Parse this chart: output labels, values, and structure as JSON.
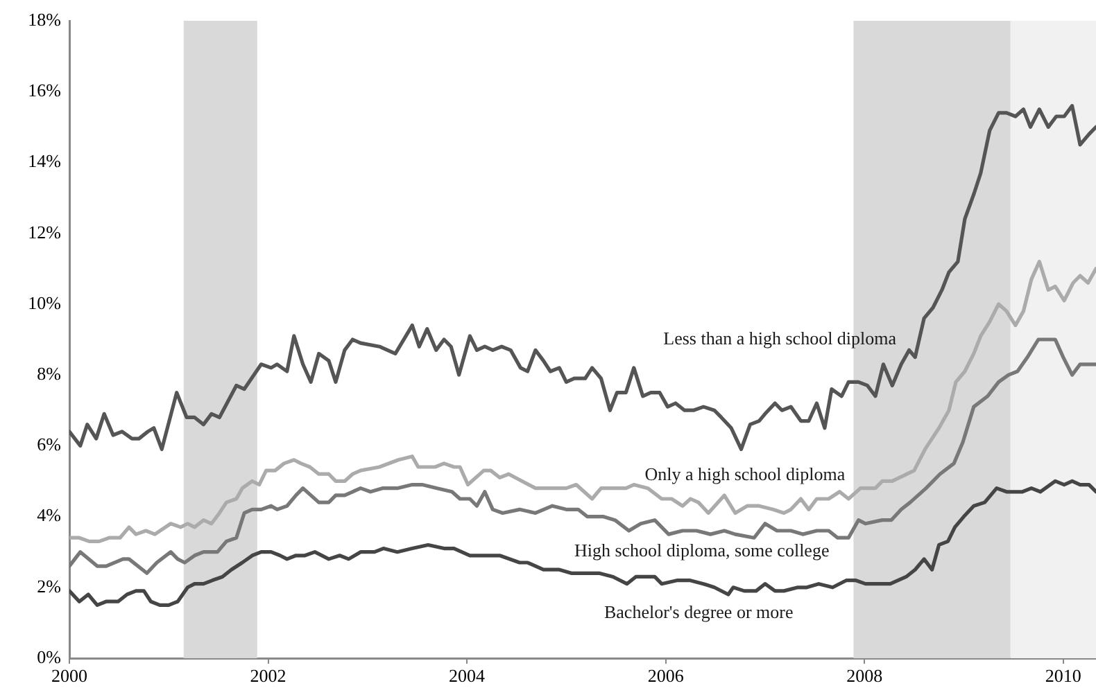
{
  "chart_data": {
    "type": "line",
    "xlim": [
      2000,
      2010.33
    ],
    "xticks": [
      2000,
      2002,
      2004,
      2006,
      2008,
      2010
    ],
    "ylim": [
      0,
      18
    ],
    "yticks": [
      {
        "value": 0,
        "label": "0%"
      },
      {
        "value": 2,
        "label": "2%"
      },
      {
        "value": 4,
        "label": "4%"
      },
      {
        "value": 6,
        "label": "6%"
      },
      {
        "value": 8,
        "label": "8%"
      },
      {
        "value": 10,
        "label": "10%"
      },
      {
        "value": 12,
        "label": "12%"
      },
      {
        "value": 14,
        "label": "14%"
      },
      {
        "value": 16,
        "label": "16%"
      },
      {
        "value": 18,
        "label": "18%"
      }
    ],
    "grid": false,
    "legend": false,
    "marker": "none",
    "line_style": "solid",
    "bands": [
      {
        "axis": "x",
        "from": 2001.15,
        "to": 2001.89,
        "label": null,
        "color": "#d9d9d9"
      },
      {
        "axis": "x",
        "from": 2007.89,
        "to": 2009.47,
        "label": null,
        "color": "#d9d9d9"
      },
      {
        "axis": "x",
        "from": 2009.47,
        "to": 2010.33,
        "label": null,
        "color": "#f1f1f1"
      }
    ],
    "series": [
      {
        "name": "Less than a high school diploma",
        "color": "#555555",
        "x": [
          2000.0,
          2000.11,
          2000.18,
          2000.27,
          2000.35,
          2000.44,
          2000.53,
          2000.63,
          2000.7,
          2000.79,
          2000.85,
          2000.93,
          2001.08,
          2001.18,
          2001.26,
          2001.35,
          2001.43,
          2001.51,
          2001.68,
          2001.76,
          2001.93,
          2002.03,
          2002.09,
          2002.19,
          2002.26,
          2002.35,
          2002.43,
          2002.51,
          2002.61,
          2002.68,
          2002.77,
          2002.85,
          2002.93,
          2003.12,
          2003.28,
          2003.45,
          2003.52,
          2003.6,
          2003.69,
          2003.77,
          2003.84,
          2003.92,
          2004.03,
          2004.1,
          2004.18,
          2004.26,
          2004.35,
          2004.44,
          2004.54,
          2004.61,
          2004.69,
          2004.77,
          2004.84,
          2004.93,
          2005.0,
          2005.08,
          2005.19,
          2005.26,
          2005.35,
          2005.44,
          2005.51,
          2005.6,
          2005.68,
          2005.77,
          2005.85,
          2005.94,
          2006.02,
          2006.1,
          2006.19,
          2006.28,
          2006.38,
          2006.49,
          2006.56,
          2006.66,
          2006.76,
          2006.85,
          2006.94,
          2007.0,
          2007.1,
          2007.17,
          2007.26,
          2007.36,
          2007.44,
          2007.52,
          2007.6,
          2007.67,
          2007.77,
          2007.84,
          2007.94,
          2008.03,
          2008.11,
          2008.19,
          2008.28,
          2008.37,
          2008.45,
          2008.51,
          2008.6,
          2008.69,
          2008.78,
          2008.85,
          2008.94,
          2009.01,
          2009.1,
          2009.17,
          2009.26,
          2009.35,
          2009.43,
          2009.52,
          2009.6,
          2009.67,
          2009.76,
          2009.85,
          2009.93,
          2010.01,
          2010.09,
          2010.17,
          2010.26,
          2010.33
        ],
        "values": [
          6.4,
          6.0,
          6.6,
          6.2,
          6.9,
          6.3,
          6.4,
          6.2,
          6.2,
          6.4,
          6.5,
          5.9,
          7.5,
          6.8,
          6.8,
          6.6,
          6.9,
          6.8,
          7.7,
          7.6,
          8.3,
          8.2,
          8.3,
          8.1,
          9.1,
          8.3,
          7.8,
          8.6,
          8.4,
          7.8,
          8.7,
          9.0,
          8.9,
          8.8,
          8.6,
          9.4,
          8.8,
          9.3,
          8.7,
          9.0,
          8.8,
          8.0,
          9.1,
          8.7,
          8.8,
          8.7,
          8.8,
          8.7,
          8.2,
          8.1,
          8.7,
          8.4,
          8.1,
          8.2,
          7.8,
          7.9,
          7.9,
          8.2,
          7.9,
          7.0,
          7.5,
          7.5,
          8.2,
          7.4,
          7.5,
          7.5,
          7.1,
          7.2,
          7.0,
          7.0,
          7.1,
          7.0,
          6.8,
          6.5,
          5.9,
          6.6,
          6.7,
          6.9,
          7.2,
          7.0,
          7.1,
          6.7,
          6.7,
          7.2,
          6.5,
          7.6,
          7.4,
          7.8,
          7.8,
          7.7,
          7.4,
          8.3,
          7.7,
          8.3,
          8.7,
          8.5,
          9.6,
          9.9,
          10.4,
          10.9,
          11.2,
          12.4,
          13.1,
          13.7,
          14.9,
          15.4,
          15.4,
          15.3,
          15.5,
          15.0,
          15.5,
          15.0,
          15.3,
          15.3,
          15.6,
          14.5,
          14.8,
          15.0
        ]
      },
      {
        "name": "Only a high school diploma",
        "color": "#ababab",
        "x": [
          2000.0,
          2000.1,
          2000.2,
          2000.3,
          2000.4,
          2000.51,
          2000.6,
          2000.67,
          2000.77,
          2000.86,
          2001.02,
          2001.12,
          2001.19,
          2001.26,
          2001.35,
          2001.43,
          2001.51,
          2001.58,
          2001.68,
          2001.74,
          2001.84,
          2001.91,
          2001.98,
          2002.07,
          2002.16,
          2002.26,
          2002.33,
          2002.42,
          2002.51,
          2002.61,
          2002.68,
          2002.77,
          2002.85,
          2002.93,
          2003.12,
          2003.31,
          2003.45,
          2003.51,
          2003.68,
          2003.77,
          2003.87,
          2003.93,
          2004.01,
          2004.17,
          2004.24,
          2004.33,
          2004.42,
          2004.69,
          2004.79,
          2004.93,
          2005.0,
          2005.1,
          2005.26,
          2005.35,
          2005.49,
          2005.6,
          2005.68,
          2005.82,
          2005.96,
          2006.06,
          2006.17,
          2006.25,
          2006.33,
          2006.43,
          2006.59,
          2006.7,
          2006.82,
          2006.94,
          2007.08,
          2007.19,
          2007.26,
          2007.36,
          2007.44,
          2007.52,
          2007.64,
          2007.75,
          2007.84,
          2007.96,
          2008.11,
          2008.18,
          2008.28,
          2008.5,
          2008.61,
          2008.75,
          2008.85,
          2008.92,
          2009.01,
          2009.1,
          2009.17,
          2009.26,
          2009.35,
          2009.43,
          2009.52,
          2009.6,
          2009.68,
          2009.76,
          2009.85,
          2009.92,
          2010.01,
          2010.1,
          2010.17,
          2010.25,
          2010.33
        ],
        "values": [
          3.4,
          3.4,
          3.3,
          3.3,
          3.4,
          3.4,
          3.7,
          3.5,
          3.6,
          3.5,
          3.8,
          3.7,
          3.8,
          3.7,
          3.9,
          3.8,
          4.1,
          4.4,
          4.5,
          4.8,
          5.0,
          4.9,
          5.3,
          5.3,
          5.5,
          5.6,
          5.5,
          5.4,
          5.2,
          5.2,
          5.0,
          5.0,
          5.2,
          5.3,
          5.4,
          5.6,
          5.7,
          5.4,
          5.4,
          5.5,
          5.4,
          5.4,
          4.9,
          5.3,
          5.3,
          5.1,
          5.2,
          4.8,
          4.8,
          4.8,
          4.8,
          4.9,
          4.5,
          4.8,
          4.8,
          4.8,
          4.9,
          4.8,
          4.5,
          4.5,
          4.3,
          4.5,
          4.4,
          4.1,
          4.6,
          4.1,
          4.3,
          4.3,
          4.2,
          4.1,
          4.2,
          4.5,
          4.2,
          4.5,
          4.5,
          4.7,
          4.5,
          4.8,
          4.8,
          5.0,
          5.0,
          5.3,
          5.9,
          6.5,
          7.0,
          7.8,
          8.1,
          8.6,
          9.1,
          9.5,
          10.0,
          9.8,
          9.4,
          9.8,
          10.7,
          11.2,
          10.4,
          10.5,
          10.1,
          10.6,
          10.8,
          10.6,
          11.0
        ]
      },
      {
        "name": "High school diploma, some college",
        "color": "#787878",
        "x": [
          2000.0,
          2000.11,
          2000.28,
          2000.37,
          2000.54,
          2000.6,
          2000.78,
          2000.88,
          2001.02,
          2001.09,
          2001.16,
          2001.26,
          2001.35,
          2001.49,
          2001.58,
          2001.68,
          2001.76,
          2001.84,
          2001.93,
          2002.03,
          2002.09,
          2002.19,
          2002.28,
          2002.35,
          2002.43,
          2002.51,
          2002.61,
          2002.68,
          2002.77,
          2002.85,
          2002.93,
          2003.03,
          2003.15,
          2003.3,
          2003.45,
          2003.55,
          2003.7,
          2003.85,
          2003.93,
          2004.03,
          2004.1,
          2004.18,
          2004.26,
          2004.36,
          2004.53,
          2004.69,
          2004.86,
          2005.0,
          2005.12,
          2005.21,
          2005.37,
          2005.49,
          2005.63,
          2005.75,
          2005.89,
          2006.03,
          2006.17,
          2006.31,
          2006.45,
          2006.59,
          2006.7,
          2006.89,
          2007.0,
          2007.12,
          2007.26,
          2007.38,
          2007.52,
          2007.64,
          2007.73,
          2007.84,
          2007.94,
          2008.01,
          2008.18,
          2008.27,
          2008.37,
          2008.46,
          2008.62,
          2008.76,
          2008.9,
          2008.99,
          2009.1,
          2009.24,
          2009.35,
          2009.45,
          2009.54,
          2009.64,
          2009.75,
          2009.92,
          2010.0,
          2010.09,
          2010.17,
          2010.29,
          2010.33
        ],
        "values": [
          2.6,
          3.0,
          2.6,
          2.6,
          2.8,
          2.8,
          2.4,
          2.7,
          3.0,
          2.8,
          2.7,
          2.9,
          3.0,
          3.0,
          3.3,
          3.4,
          4.1,
          4.2,
          4.2,
          4.3,
          4.2,
          4.3,
          4.6,
          4.8,
          4.6,
          4.4,
          4.4,
          4.6,
          4.6,
          4.7,
          4.8,
          4.7,
          4.8,
          4.8,
          4.9,
          4.9,
          4.8,
          4.7,
          4.5,
          4.5,
          4.3,
          4.7,
          4.2,
          4.1,
          4.2,
          4.1,
          4.3,
          4.2,
          4.2,
          4.0,
          4.0,
          3.9,
          3.6,
          3.8,
          3.9,
          3.5,
          3.6,
          3.6,
          3.5,
          3.6,
          3.5,
          3.4,
          3.8,
          3.6,
          3.6,
          3.5,
          3.6,
          3.6,
          3.4,
          3.4,
          3.9,
          3.8,
          3.9,
          3.9,
          4.2,
          4.4,
          4.8,
          5.2,
          5.5,
          6.1,
          7.1,
          7.4,
          7.8,
          8.0,
          8.1,
          8.5,
          9.0,
          9.0,
          8.5,
          8.0,
          8.3,
          8.3,
          8.3
        ]
      },
      {
        "name": "Bachelor's degree or more",
        "color": "#454545",
        "x": [
          2000.0,
          2000.1,
          2000.19,
          2000.28,
          2000.37,
          2000.49,
          2000.58,
          2000.67,
          2000.75,
          2000.82,
          2000.91,
          2001.0,
          2001.09,
          2001.19,
          2001.26,
          2001.35,
          2001.44,
          2001.54,
          2001.63,
          2001.74,
          2001.84,
          2001.93,
          2002.03,
          2002.12,
          2002.19,
          2002.28,
          2002.37,
          2002.47,
          2002.61,
          2002.72,
          2002.81,
          2002.93,
          2003.07,
          2003.16,
          2003.3,
          2003.45,
          2003.61,
          2003.77,
          2003.87,
          2004.03,
          2004.17,
          2004.33,
          2004.53,
          2004.61,
          2004.77,
          2004.93,
          2005.05,
          2005.33,
          2005.47,
          2005.61,
          2005.7,
          2005.89,
          2005.96,
          2006.12,
          2006.24,
          2006.38,
          2006.49,
          2006.63,
          2006.68,
          2006.79,
          2006.91,
          2007.0,
          2007.1,
          2007.19,
          2007.33,
          2007.42,
          2007.54,
          2007.68,
          2007.82,
          2007.91,
          2008.01,
          2008.26,
          2008.42,
          2008.51,
          2008.6,
          2008.68,
          2008.75,
          2008.84,
          2008.91,
          2009.0,
          2009.1,
          2009.21,
          2009.33,
          2009.43,
          2009.59,
          2009.68,
          2009.77,
          2009.92,
          2010.01,
          2010.09,
          2010.17,
          2010.26,
          2010.33
        ],
        "values": [
          1.9,
          1.6,
          1.8,
          1.5,
          1.6,
          1.6,
          1.8,
          1.9,
          1.9,
          1.6,
          1.5,
          1.5,
          1.6,
          2.0,
          2.1,
          2.1,
          2.2,
          2.3,
          2.5,
          2.7,
          2.9,
          3.0,
          3.0,
          2.9,
          2.8,
          2.9,
          2.9,
          3.0,
          2.8,
          2.9,
          2.8,
          3.0,
          3.0,
          3.1,
          3.0,
          3.1,
          3.2,
          3.1,
          3.1,
          2.9,
          2.9,
          2.9,
          2.7,
          2.7,
          2.5,
          2.5,
          2.4,
          2.4,
          2.3,
          2.1,
          2.3,
          2.3,
          2.1,
          2.2,
          2.2,
          2.1,
          2.0,
          1.8,
          2.0,
          1.9,
          1.9,
          2.1,
          1.9,
          1.9,
          2.0,
          2.0,
          2.1,
          2.0,
          2.2,
          2.2,
          2.1,
          2.1,
          2.3,
          2.5,
          2.8,
          2.5,
          3.2,
          3.3,
          3.7,
          4.0,
          4.3,
          4.4,
          4.8,
          4.7,
          4.7,
          4.8,
          4.7,
          5.0,
          4.9,
          5.0,
          4.9,
          4.9,
          4.7
        ]
      }
    ]
  }
}
